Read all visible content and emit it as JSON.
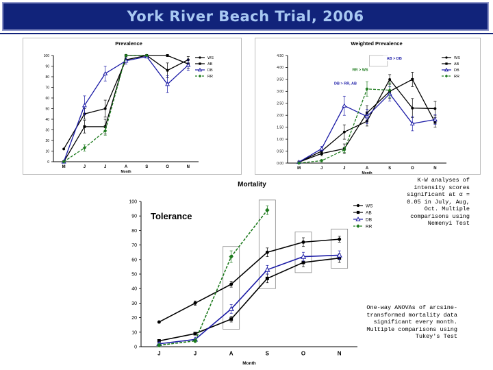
{
  "slide": {
    "title": "York River Beach Trial, 2006",
    "kw_note": "K-W analyses of intensity scores significant at α = 0.05 in July, Aug, Oct. Multiple comparisons using Nemenyi Test",
    "anova_note": "One-way ANOVAs of arcsine-transformed mortality data significant every month. Multiple comparisons using Tukey's Test"
  },
  "colors": {
    "title_bg": "#11237a",
    "title_text": "#a8c8f2",
    "WS": "#000000",
    "AB": "#000000",
    "DB": "#1a1aa6",
    "RR": "#1c7a1c"
  },
  "chart_data": [
    {
      "id": "prevalence",
      "type": "line",
      "title": "Prevalence",
      "xlabel": "Month",
      "ylabel": "",
      "categories": [
        "M",
        "J",
        "J",
        "A",
        "S",
        "O",
        "N"
      ],
      "yticks": [
        "0",
        "10",
        "20",
        "30",
        "40",
        "50",
        "60",
        "70",
        "80",
        "90",
        "100"
      ],
      "ylim": [
        0,
        100
      ],
      "grid": false,
      "legend": "right",
      "series": [
        {
          "name": "WS",
          "marker": "circle",
          "values": [
            12,
            45,
            50,
            96,
            100,
            86,
            96
          ],
          "err": [
            0,
            5,
            8,
            2,
            0,
            7,
            3
          ]
        },
        {
          "name": "AB",
          "marker": "square",
          "values": [
            0,
            33,
            33,
            100,
            100,
            100,
            92
          ],
          "err": [
            0,
            6,
            7,
            0,
            0,
            0,
            4
          ]
        },
        {
          "name": "DB",
          "marker": "triangle",
          "values": [
            0,
            53,
            83,
            95,
            99,
            73,
            91
          ],
          "err": [
            0,
            9,
            7,
            3,
            1,
            8,
            5
          ]
        },
        {
          "name": "RR",
          "marker": "diamond",
          "dashed": true,
          "values": [
            0,
            13,
            29,
            100,
            100,
            null,
            null
          ],
          "err": [
            0,
            3,
            4,
            0,
            0,
            0,
            0
          ]
        }
      ]
    },
    {
      "id": "weighted",
      "type": "line",
      "title": "Weighted Prevalence",
      "xlabel": "Month",
      "ylabel": "",
      "categories": [
        "M",
        "J",
        "J",
        "A",
        "S",
        "O",
        "N"
      ],
      "yticks": [
        "0.00",
        "0.50",
        "1.00",
        "1.50",
        "2.00",
        "2.50",
        "3.00",
        "3.50",
        "4.00",
        "4.50"
      ],
      "ylim": [
        0,
        4.5
      ],
      "grid": false,
      "legend": "right",
      "annotations": [
        {
          "text": "AB > DB",
          "x": 4.7,
          "y": 4.33,
          "color": "#1a1aa6",
          "highlight": "AB"
        },
        {
          "text": "RR > WS",
          "x": 3.2,
          "y": 3.85,
          "color": "#1c7a1c",
          "highlight": "RR"
        },
        {
          "text": "DB > RR, AB",
          "x": 2.55,
          "y": 3.28,
          "color": "#1a1aa6",
          "highlight": "DB"
        }
      ],
      "boxes": [
        {
          "from": 3.6,
          "to": 4.4,
          "ymin": 4.05,
          "ymax": 4.5
        }
      ],
      "series": [
        {
          "name": "WS",
          "marker": "circle",
          "values": [
            0.04,
            0.5,
            1.3,
            1.75,
            3.5,
            2.3,
            2.28
          ],
          "err": [
            0,
            0.1,
            0.3,
            0.2,
            0.2,
            0.4,
            0.3
          ]
        },
        {
          "name": "AB",
          "marker": "square",
          "values": [
            0.04,
            0.4,
            0.6,
            2.1,
            3.0,
            3.5,
            1.7
          ],
          "err": [
            0,
            0.1,
            0.2,
            0.3,
            0.3,
            0.3,
            0.2
          ]
        },
        {
          "name": "DB",
          "marker": "triangle",
          "values": [
            0.04,
            0.6,
            2.4,
            1.95,
            2.9,
            1.65,
            1.82
          ],
          "err": [
            0,
            0.1,
            0.4,
            0.3,
            0.3,
            0.3,
            0.2
          ]
        },
        {
          "name": "RR",
          "marker": "diamond",
          "dashed": true,
          "values": [
            0.0,
            0.1,
            0.55,
            3.1,
            3.05,
            null,
            null
          ],
          "err": [
            0,
            0.05,
            0.1,
            0.3,
            0.3,
            0,
            0
          ]
        }
      ]
    },
    {
      "id": "mortality",
      "type": "line",
      "title": "Mortality",
      "inner_label": "Tolerance",
      "xlabel": "Month",
      "ylabel": "",
      "categories": [
        "J",
        "J",
        "A",
        "S",
        "O",
        "N"
      ],
      "yticks": [
        "0",
        "10",
        "20",
        "30",
        "40",
        "50",
        "60",
        "70",
        "80",
        "90",
        "100"
      ],
      "ylim": [
        0,
        100
      ],
      "grid": false,
      "legend": "right",
      "series": [
        {
          "name": "WS",
          "marker": "circle",
          "values": [
            17,
            30,
            43,
            65,
            72,
            74
          ],
          "err": [
            0,
            1.5,
            2,
            3,
            3,
            2
          ]
        },
        {
          "name": "AB",
          "marker": "square",
          "values": [
            4,
            9,
            19,
            47,
            58,
            61
          ],
          "err": [
            1,
            1,
            2,
            3,
            3,
            3
          ]
        },
        {
          "name": "DB",
          "marker": "triangle",
          "values": [
            2,
            5,
            26,
            53,
            62,
            63
          ],
          "err": [
            1,
            1,
            3,
            3,
            3,
            3
          ]
        },
        {
          "name": "RR",
          "marker": "diamond",
          "dashed": true,
          "values": [
            1,
            4,
            62,
            94,
            null,
            null
          ],
          "err": [
            1,
            1,
            4,
            3,
            0,
            0
          ]
        }
      ]
    }
  ]
}
